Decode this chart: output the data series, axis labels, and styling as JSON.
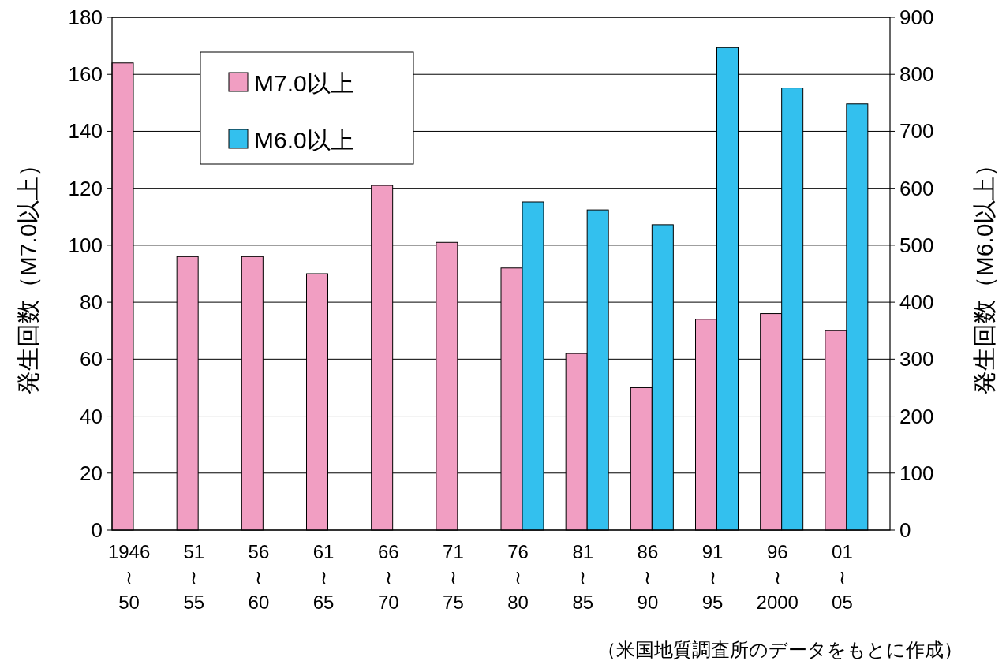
{
  "chart_data": {
    "type": "bar",
    "categories": [
      "1946\n≀\n50",
      "51\n≀\n55",
      "56\n≀\n60",
      "61\n≀\n65",
      "66\n≀\n70",
      "71\n≀\n75",
      "76\n≀\n80",
      "81\n≀\n85",
      "86\n≀\n90",
      "91\n≀\n95",
      "96\n≀\n2000",
      "01\n≀\n05"
    ],
    "series": [
      {
        "name": "M7.0以上",
        "color": "#f19ec2",
        "values": [
          164,
          96,
          96,
          90,
          121,
          101,
          92,
          62,
          50,
          74,
          76,
          70
        ]
      },
      {
        "name": "M6.0以上",
        "color": "#33c0ee",
        "axis": "y2",
        "values": [
          null,
          null,
          null,
          null,
          null,
          null,
          576,
          562,
          536,
          847,
          776,
          748
        ]
      }
    ],
    "ylabel": "発生回数（M7.0以上）",
    "y2label": "発生回数（M6.0以上）",
    "ylim": [
      0,
      180
    ],
    "yticks": [
      0,
      20,
      40,
      60,
      80,
      100,
      120,
      140,
      160,
      180
    ],
    "y2lim": [
      0,
      900
    ],
    "y2ticks": [
      0,
      100,
      200,
      300,
      400,
      500,
      600,
      700,
      800,
      900
    ],
    "grid": "y",
    "legend": "top left",
    "annotations": [
      "（米国地質調査所のデータをもとに作成）"
    ]
  }
}
